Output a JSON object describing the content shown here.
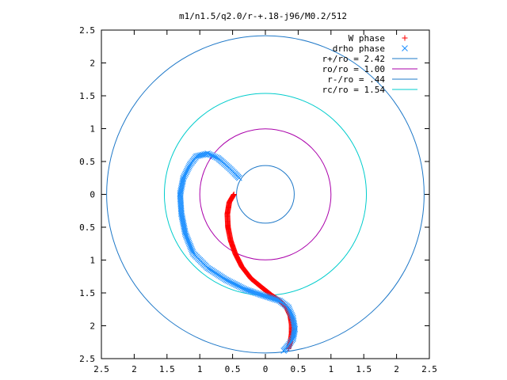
{
  "chart_data": {
    "type": "scatter",
    "title": "m1/n1.5/q2.0/r-+.18-j96/M0.2/512",
    "xlim": [
      -2.5,
      2.5
    ],
    "ylim": [
      -2.5,
      2.5
    ],
    "grid": false,
    "legend_position": "top-right",
    "x_ticks": [
      -2.5,
      -2,
      -1.5,
      -1,
      -0.5,
      0,
      0.5,
      1,
      1.5,
      2,
      2.5
    ],
    "y_ticks": [
      2.5,
      2,
      1.5,
      1,
      0.5,
      0,
      -0.5,
      -1,
      -1.5,
      -2,
      -2.5
    ],
    "x_tick_labels": [
      "2.5",
      "2",
      "1.5",
      "1",
      "0.5",
      "0",
      "0.5",
      "1",
      "1.5",
      "2",
      "2.5"
    ],
    "y_tick_labels": [
      "2.5",
      "2",
      "1.5",
      "1",
      "0.5",
      "0",
      "0.5",
      "1",
      "1.5",
      "2",
      "2.5"
    ],
    "series": [
      {
        "name": "W phase",
        "marker": "+",
        "color": "#ff0000",
        "points": [
          [
            -0.48,
            0.0
          ],
          [
            -0.55,
            -0.12
          ],
          [
            -0.58,
            -0.3
          ],
          [
            -0.57,
            -0.5
          ],
          [
            -0.53,
            -0.7
          ],
          [
            -0.46,
            -0.9
          ],
          [
            -0.36,
            -1.1
          ],
          [
            -0.22,
            -1.28
          ],
          [
            -0.05,
            -1.42
          ],
          [
            0.1,
            -1.54
          ],
          [
            0.22,
            -1.62
          ],
          [
            0.32,
            -1.72
          ],
          [
            0.38,
            -1.85
          ],
          [
            0.4,
            -1.98
          ],
          [
            0.4,
            -2.12
          ],
          [
            0.38,
            -2.25
          ],
          [
            0.35,
            -2.35
          ]
        ]
      },
      {
        "name": "drho phase",
        "marker": "x",
        "color": "#1e90ff",
        "points": [
          [
            -0.4,
            0.25
          ],
          [
            -0.55,
            0.4
          ],
          [
            -0.72,
            0.55
          ],
          [
            -0.88,
            0.62
          ],
          [
            -1.05,
            0.58
          ],
          [
            -1.15,
            0.45
          ],
          [
            -1.25,
            0.25
          ],
          [
            -1.3,
            0.0
          ],
          [
            -1.28,
            -0.3
          ],
          [
            -1.22,
            -0.6
          ],
          [
            -1.1,
            -0.9
          ],
          [
            -0.88,
            -1.12
          ],
          [
            -0.6,
            -1.3
          ],
          [
            -0.3,
            -1.45
          ],
          [
            0.0,
            -1.55
          ],
          [
            0.22,
            -1.62
          ],
          [
            0.35,
            -1.72
          ],
          [
            0.42,
            -1.88
          ],
          [
            0.45,
            -2.05
          ],
          [
            0.42,
            -2.2
          ],
          [
            0.35,
            -2.3
          ],
          [
            0.28,
            -2.38
          ]
        ]
      },
      {
        "name": "r+/ro = 2.42",
        "type": "circle",
        "radius": 2.42,
        "color": "#1e78c8"
      },
      {
        "name": "ro/ro = 1.00",
        "type": "circle",
        "radius": 1.0,
        "color": "#aa00aa"
      },
      {
        "name": "r-/ro = .44",
        "type": "circle",
        "radius": 0.44,
        "color": "#1e78c8"
      },
      {
        "name": "rc/ro = 1.54",
        "type": "circle",
        "radius": 1.54,
        "color": "#00cccc"
      }
    ]
  }
}
